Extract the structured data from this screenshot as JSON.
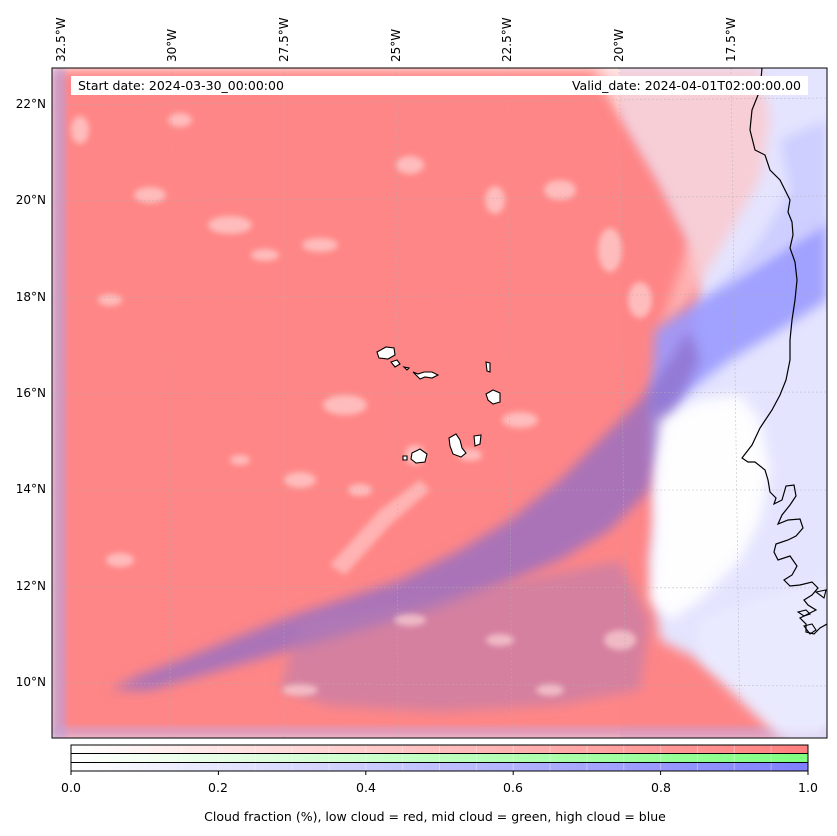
{
  "map": {
    "start_label": "Start date: 2024-03-30_00:00:00",
    "valid_label": "Valid_date: 2024-04-01T02:00:00.00",
    "lon_labels": [
      "32.5°W",
      "30°W",
      "27.5°W",
      "25°W",
      "22.5°W",
      "20°W",
      "17.5°W"
    ],
    "lat_labels": [
      "22°N",
      "20°N",
      "18°N",
      "16°N",
      "14°N",
      "12°N",
      "10°N"
    ],
    "colors": {
      "low_cloud": "#ff7f7f",
      "mid_cloud": "#7fff7f",
      "high_cloud": "#7f7fff",
      "coastline": "#000000"
    }
  },
  "colorbar": {
    "ticks": [
      "0.0",
      "0.2",
      "0.4",
      "0.6",
      "0.8",
      "1.0"
    ],
    "caption": "Cloud fraction (%), low cloud = red, mid cloud = green, high cloud = blue",
    "rows": [
      "low cloud",
      "mid cloud",
      "high cloud"
    ]
  }
}
